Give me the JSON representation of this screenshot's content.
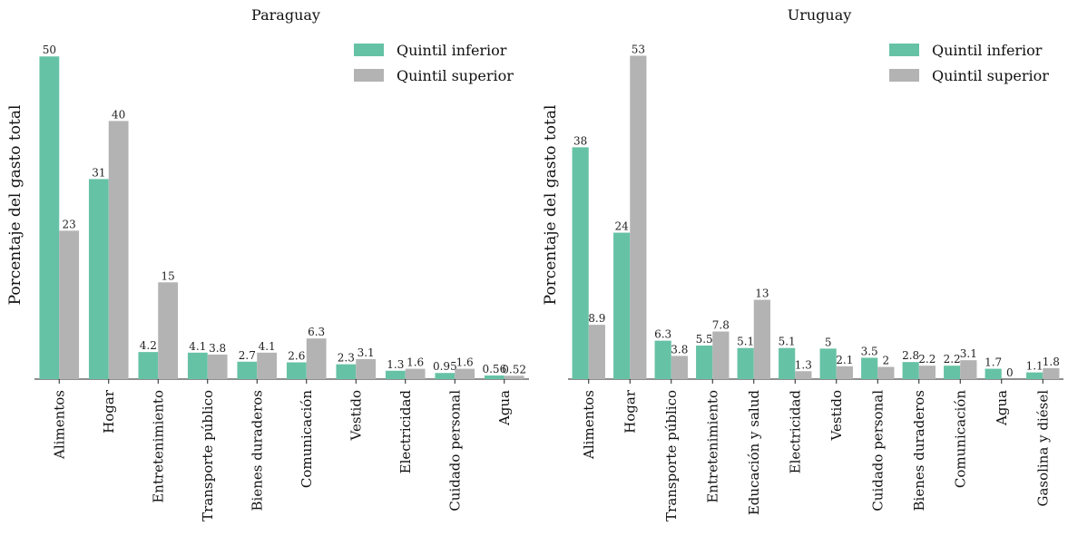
{
  "colors": {
    "inferior": "#66c2a5",
    "superior": "#b3b3b3"
  },
  "chart_data": [
    {
      "type": "bar",
      "title": "Paraguay",
      "ylabel": "Porcentaje del gasto total",
      "ylim": [
        0,
        52
      ],
      "legend_position": "top-right",
      "categories": [
        "Alimentos",
        "Hogar",
        "Entretenimiento",
        "Transporte público",
        "Bienes duraderos",
        "Comunicación",
        "Vestido",
        "Electricidad",
        "Cuidado personal",
        "Agua"
      ],
      "series": [
        {
          "name": "Quintil inferior",
          "values": [
            50,
            31,
            4.2,
            4.1,
            2.7,
            2.6,
            2.3,
            1.3,
            0.95,
            0.56
          ],
          "labels": [
            "50",
            "31",
            "4.2",
            "4.1",
            "2.7",
            "2.6",
            "2.3",
            "1.3",
            "0.95",
            "0.56"
          ]
        },
        {
          "name": "Quintil superior",
          "values": [
            23,
            40,
            15,
            3.8,
            4.1,
            6.3,
            3.1,
            1.6,
            1.6,
            0.52
          ],
          "labels": [
            "23",
            "40",
            "15",
            "3.8",
            "4.1",
            "6.3",
            "3.1",
            "1.6",
            "1.6",
            "0.52"
          ]
        }
      ]
    },
    {
      "type": "bar",
      "title": "Uruguay",
      "ylabel": "Porcentaje del gasto total",
      "ylim": [
        0,
        55
      ],
      "legend_position": "top-right",
      "categories": [
        "Alimentos",
        "Hogar",
        "Transporte público",
        "Entretenimiento",
        "Educación y salud",
        "Electricidad",
        "Vestido",
        "Cuidado personal",
        "Bienes duraderos",
        "Comunicación",
        "Agua",
        "Gasolina y diésel"
      ],
      "series": [
        {
          "name": "Quintil inferior",
          "values": [
            38,
            24,
            6.3,
            5.5,
            5.1,
            5.1,
            5,
            3.5,
            2.8,
            2.2,
            1.7,
            1.1
          ],
          "labels": [
            "38",
            "24",
            "6.3",
            "5.5",
            "5.1",
            "5.1",
            "5",
            "3.5",
            "2.8",
            "2.2",
            "1.7",
            "1.1"
          ]
        },
        {
          "name": "Quintil superior",
          "values": [
            8.9,
            53,
            3.8,
            7.8,
            13,
            1.3,
            2.1,
            2,
            2.2,
            3.1,
            0,
            1.8
          ],
          "labels": [
            "8.9",
            "53",
            "3.8",
            "7.8",
            "13",
            "1.3",
            "2.1",
            "2",
            "2.2",
            "3.1",
            "0",
            "1.8"
          ]
        }
      ]
    }
  ]
}
